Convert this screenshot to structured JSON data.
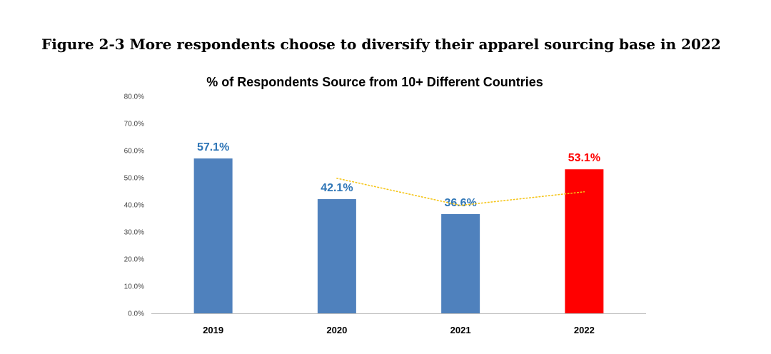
{
  "figure": {
    "title": "Figure 2-3 More respondents choose to diversify their apparel sourcing base in 2022"
  },
  "chart_data": {
    "type": "bar",
    "title": "% of Respondents Source from 10+ Different Countries",
    "xlabel": "",
    "ylabel": "",
    "categories": [
      "2019",
      "2020",
      "2021",
      "2022"
    ],
    "values": [
      57.1,
      42.1,
      36.6,
      53.1
    ],
    "data_labels": [
      "57.1%",
      "42.1%",
      "36.6%",
      "53.1%"
    ],
    "bar_colors": [
      "#4f81bd",
      "#4f81bd",
      "#4f81bd",
      "#ff0000"
    ],
    "label_colors": [
      "#2e75b6",
      "#2e75b6",
      "#2e75b6",
      "#ff0000"
    ],
    "ylim": [
      0,
      80
    ],
    "yticks": [
      0,
      10,
      20,
      30,
      40,
      50,
      60,
      70,
      80
    ],
    "ytick_labels": [
      "0.0%",
      "10.0%",
      "20.0%",
      "30.0%",
      "40.0%",
      "50.0%",
      "60.0%",
      "70.0%",
      "80.0%"
    ],
    "grid": false,
    "trendline": {
      "style": "dotted",
      "color": "#f5c518",
      "points": [
        {
          "category": "2020",
          "value": 49.8
        },
        {
          "category": "2021",
          "value": 39.8
        },
        {
          "category": "2022",
          "value": 44.8
        }
      ]
    }
  }
}
